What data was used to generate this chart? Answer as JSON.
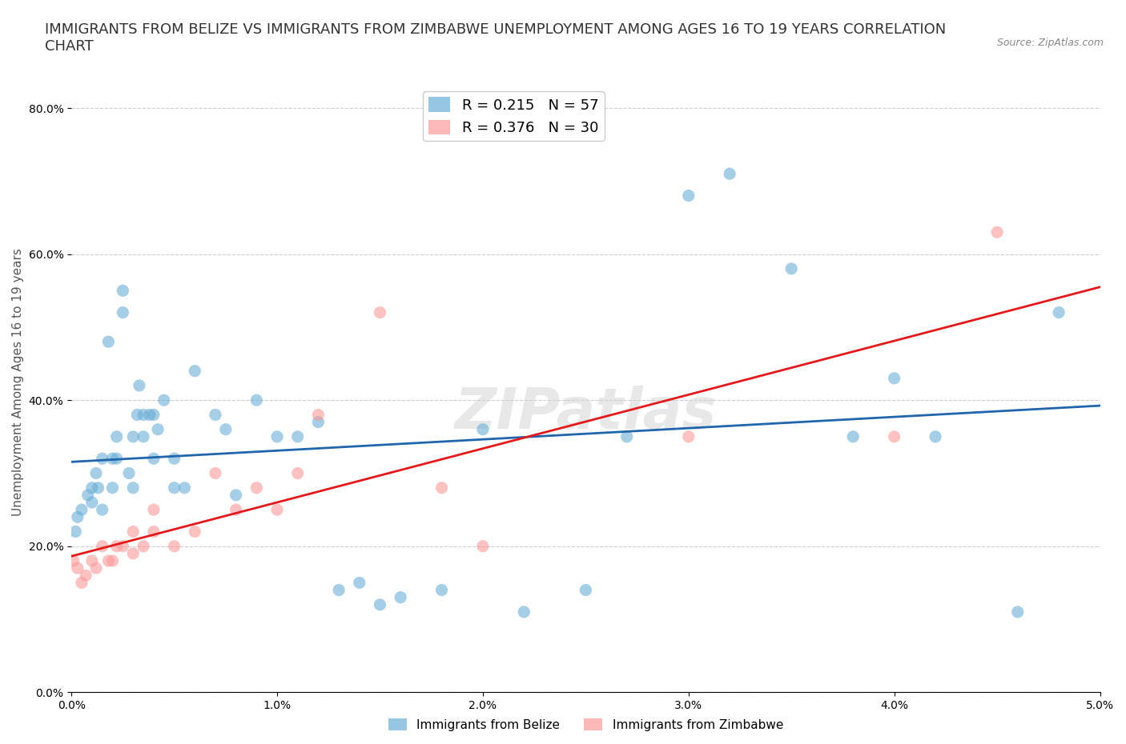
{
  "title": "IMMIGRANTS FROM BELIZE VS IMMIGRANTS FROM ZIMBABWE UNEMPLOYMENT AMONG AGES 16 TO 19 YEARS CORRELATION\nCHART",
  "source_text": "Source: ZipAtlas.com",
  "xlabel": "",
  "ylabel": "Unemployment Among Ages 16 to 19 years",
  "xlim": [
    0.0,
    0.05
  ],
  "ylim": [
    0.0,
    0.85
  ],
  "xticks": [
    0.0,
    0.01,
    0.02,
    0.03,
    0.04,
    0.05
  ],
  "xticklabels": [
    "0.0%",
    "1.0%",
    "2.0%",
    "3.0%",
    "4.0%",
    "5.0%"
  ],
  "yticks": [
    0.0,
    0.2,
    0.4,
    0.6,
    0.8
  ],
  "yticklabels": [
    "0.0%",
    "20.0%",
    "40.0%",
    "60.0%",
    "80.0%"
  ],
  "belize_color": "#6baed6",
  "zimbabwe_color": "#fb9a99",
  "belize_line_color": "#2166ac",
  "zimbabwe_line_color": "#e31a1c",
  "R_belize": 0.215,
  "N_belize": 57,
  "R_zimbabwe": 0.376,
  "N_zimbabwe": 30,
  "legend_belize_label": "R = 0.215   N = 57",
  "legend_zimbabwe_label": "R = 0.376   N = 30",
  "belize_x": [
    0.0002,
    0.0003,
    0.0005,
    0.0008,
    0.001,
    0.001,
    0.0012,
    0.0013,
    0.0015,
    0.0015,
    0.0018,
    0.002,
    0.002,
    0.0022,
    0.0022,
    0.0025,
    0.0025,
    0.0028,
    0.003,
    0.003,
    0.0032,
    0.0033,
    0.0035,
    0.0035,
    0.0038,
    0.004,
    0.004,
    0.0042,
    0.0045,
    0.005,
    0.005,
    0.0055,
    0.006,
    0.007,
    0.0075,
    0.008,
    0.009,
    0.01,
    0.011,
    0.012,
    0.013,
    0.014,
    0.015,
    0.016,
    0.018,
    0.02,
    0.022,
    0.025,
    0.027,
    0.03,
    0.032,
    0.035,
    0.038,
    0.04,
    0.042,
    0.046,
    0.048
  ],
  "belize_y": [
    0.22,
    0.24,
    0.25,
    0.27,
    0.26,
    0.28,
    0.3,
    0.28,
    0.25,
    0.32,
    0.48,
    0.28,
    0.32,
    0.32,
    0.35,
    0.52,
    0.55,
    0.3,
    0.28,
    0.35,
    0.38,
    0.42,
    0.38,
    0.35,
    0.38,
    0.38,
    0.32,
    0.36,
    0.4,
    0.32,
    0.28,
    0.28,
    0.44,
    0.38,
    0.36,
    0.27,
    0.4,
    0.35,
    0.35,
    0.37,
    0.14,
    0.15,
    0.12,
    0.13,
    0.14,
    0.36,
    0.11,
    0.14,
    0.35,
    0.68,
    0.71,
    0.58,
    0.35,
    0.43,
    0.35,
    0.11,
    0.52
  ],
  "zimbabwe_x": [
    0.0001,
    0.0003,
    0.0005,
    0.0007,
    0.001,
    0.0012,
    0.0015,
    0.0018,
    0.002,
    0.0022,
    0.0025,
    0.003,
    0.003,
    0.0035,
    0.004,
    0.004,
    0.005,
    0.006,
    0.007,
    0.008,
    0.009,
    0.01,
    0.011,
    0.012,
    0.015,
    0.018,
    0.02,
    0.03,
    0.04,
    0.045
  ],
  "zimbabwe_y": [
    0.18,
    0.17,
    0.15,
    0.16,
    0.18,
    0.17,
    0.2,
    0.18,
    0.18,
    0.2,
    0.2,
    0.19,
    0.22,
    0.2,
    0.25,
    0.22,
    0.2,
    0.22,
    0.3,
    0.25,
    0.28,
    0.25,
    0.3,
    0.38,
    0.52,
    0.28,
    0.2,
    0.35,
    0.35,
    0.63
  ],
  "watermark": "ZIPatlas",
  "legend_belize_color": "#6baed6",
  "legend_zimbabwe_color": "#fb9a99",
  "bottom_legend_belize": "Immigrants from Belize",
  "bottom_legend_zimbabwe": "Immigrants from Zimbabwe",
  "background_color": "#ffffff",
  "grid_color": "#cccccc",
  "title_fontsize": 13,
  "axis_fontsize": 11,
  "tick_fontsize": 10
}
